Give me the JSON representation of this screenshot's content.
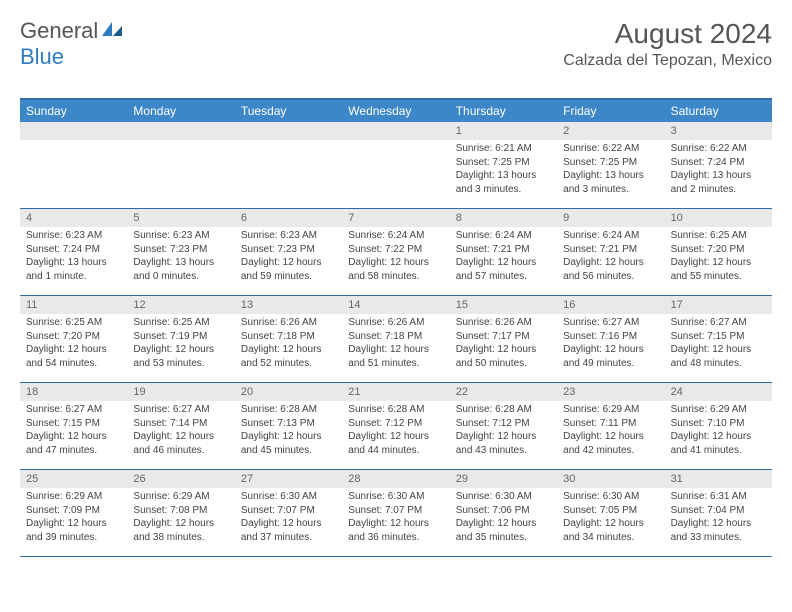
{
  "logo": {
    "text1": "General",
    "text2": "Blue"
  },
  "title": "August 2024",
  "location": "Calzada del Tepozan, Mexico",
  "colors": {
    "header_bg": "#3d87c9",
    "header_border": "#2e6da4",
    "daynum_bg": "#e9e9e9",
    "text": "#444444"
  },
  "weekdays": [
    "Sunday",
    "Monday",
    "Tuesday",
    "Wednesday",
    "Thursday",
    "Friday",
    "Saturday"
  ],
  "weeks": [
    [
      {
        "n": "",
        "sunrise": "",
        "sunset": "",
        "daylight": ""
      },
      {
        "n": "",
        "sunrise": "",
        "sunset": "",
        "daylight": ""
      },
      {
        "n": "",
        "sunrise": "",
        "sunset": "",
        "daylight": ""
      },
      {
        "n": "",
        "sunrise": "",
        "sunset": "",
        "daylight": ""
      },
      {
        "n": "1",
        "sunrise": "Sunrise: 6:21 AM",
        "sunset": "Sunset: 7:25 PM",
        "daylight": "Daylight: 13 hours and 3 minutes."
      },
      {
        "n": "2",
        "sunrise": "Sunrise: 6:22 AM",
        "sunset": "Sunset: 7:25 PM",
        "daylight": "Daylight: 13 hours and 3 minutes."
      },
      {
        "n": "3",
        "sunrise": "Sunrise: 6:22 AM",
        "sunset": "Sunset: 7:24 PM",
        "daylight": "Daylight: 13 hours and 2 minutes."
      }
    ],
    [
      {
        "n": "4",
        "sunrise": "Sunrise: 6:23 AM",
        "sunset": "Sunset: 7:24 PM",
        "daylight": "Daylight: 13 hours and 1 minute."
      },
      {
        "n": "5",
        "sunrise": "Sunrise: 6:23 AM",
        "sunset": "Sunset: 7:23 PM",
        "daylight": "Daylight: 13 hours and 0 minutes."
      },
      {
        "n": "6",
        "sunrise": "Sunrise: 6:23 AM",
        "sunset": "Sunset: 7:23 PM",
        "daylight": "Daylight: 12 hours and 59 minutes."
      },
      {
        "n": "7",
        "sunrise": "Sunrise: 6:24 AM",
        "sunset": "Sunset: 7:22 PM",
        "daylight": "Daylight: 12 hours and 58 minutes."
      },
      {
        "n": "8",
        "sunrise": "Sunrise: 6:24 AM",
        "sunset": "Sunset: 7:21 PM",
        "daylight": "Daylight: 12 hours and 57 minutes."
      },
      {
        "n": "9",
        "sunrise": "Sunrise: 6:24 AM",
        "sunset": "Sunset: 7:21 PM",
        "daylight": "Daylight: 12 hours and 56 minutes."
      },
      {
        "n": "10",
        "sunrise": "Sunrise: 6:25 AM",
        "sunset": "Sunset: 7:20 PM",
        "daylight": "Daylight: 12 hours and 55 minutes."
      }
    ],
    [
      {
        "n": "11",
        "sunrise": "Sunrise: 6:25 AM",
        "sunset": "Sunset: 7:20 PM",
        "daylight": "Daylight: 12 hours and 54 minutes."
      },
      {
        "n": "12",
        "sunrise": "Sunrise: 6:25 AM",
        "sunset": "Sunset: 7:19 PM",
        "daylight": "Daylight: 12 hours and 53 minutes."
      },
      {
        "n": "13",
        "sunrise": "Sunrise: 6:26 AM",
        "sunset": "Sunset: 7:18 PM",
        "daylight": "Daylight: 12 hours and 52 minutes."
      },
      {
        "n": "14",
        "sunrise": "Sunrise: 6:26 AM",
        "sunset": "Sunset: 7:18 PM",
        "daylight": "Daylight: 12 hours and 51 minutes."
      },
      {
        "n": "15",
        "sunrise": "Sunrise: 6:26 AM",
        "sunset": "Sunset: 7:17 PM",
        "daylight": "Daylight: 12 hours and 50 minutes."
      },
      {
        "n": "16",
        "sunrise": "Sunrise: 6:27 AM",
        "sunset": "Sunset: 7:16 PM",
        "daylight": "Daylight: 12 hours and 49 minutes."
      },
      {
        "n": "17",
        "sunrise": "Sunrise: 6:27 AM",
        "sunset": "Sunset: 7:15 PM",
        "daylight": "Daylight: 12 hours and 48 minutes."
      }
    ],
    [
      {
        "n": "18",
        "sunrise": "Sunrise: 6:27 AM",
        "sunset": "Sunset: 7:15 PM",
        "daylight": "Daylight: 12 hours and 47 minutes."
      },
      {
        "n": "19",
        "sunrise": "Sunrise: 6:27 AM",
        "sunset": "Sunset: 7:14 PM",
        "daylight": "Daylight: 12 hours and 46 minutes."
      },
      {
        "n": "20",
        "sunrise": "Sunrise: 6:28 AM",
        "sunset": "Sunset: 7:13 PM",
        "daylight": "Daylight: 12 hours and 45 minutes."
      },
      {
        "n": "21",
        "sunrise": "Sunrise: 6:28 AM",
        "sunset": "Sunset: 7:12 PM",
        "daylight": "Daylight: 12 hours and 44 minutes."
      },
      {
        "n": "22",
        "sunrise": "Sunrise: 6:28 AM",
        "sunset": "Sunset: 7:12 PM",
        "daylight": "Daylight: 12 hours and 43 minutes."
      },
      {
        "n": "23",
        "sunrise": "Sunrise: 6:29 AM",
        "sunset": "Sunset: 7:11 PM",
        "daylight": "Daylight: 12 hours and 42 minutes."
      },
      {
        "n": "24",
        "sunrise": "Sunrise: 6:29 AM",
        "sunset": "Sunset: 7:10 PM",
        "daylight": "Daylight: 12 hours and 41 minutes."
      }
    ],
    [
      {
        "n": "25",
        "sunrise": "Sunrise: 6:29 AM",
        "sunset": "Sunset: 7:09 PM",
        "daylight": "Daylight: 12 hours and 39 minutes."
      },
      {
        "n": "26",
        "sunrise": "Sunrise: 6:29 AM",
        "sunset": "Sunset: 7:08 PM",
        "daylight": "Daylight: 12 hours and 38 minutes."
      },
      {
        "n": "27",
        "sunrise": "Sunrise: 6:30 AM",
        "sunset": "Sunset: 7:07 PM",
        "daylight": "Daylight: 12 hours and 37 minutes."
      },
      {
        "n": "28",
        "sunrise": "Sunrise: 6:30 AM",
        "sunset": "Sunset: 7:07 PM",
        "daylight": "Daylight: 12 hours and 36 minutes."
      },
      {
        "n": "29",
        "sunrise": "Sunrise: 6:30 AM",
        "sunset": "Sunset: 7:06 PM",
        "daylight": "Daylight: 12 hours and 35 minutes."
      },
      {
        "n": "30",
        "sunrise": "Sunrise: 6:30 AM",
        "sunset": "Sunset: 7:05 PM",
        "daylight": "Daylight: 12 hours and 34 minutes."
      },
      {
        "n": "31",
        "sunrise": "Sunrise: 6:31 AM",
        "sunset": "Sunset: 7:04 PM",
        "daylight": "Daylight: 12 hours and 33 minutes."
      }
    ]
  ]
}
